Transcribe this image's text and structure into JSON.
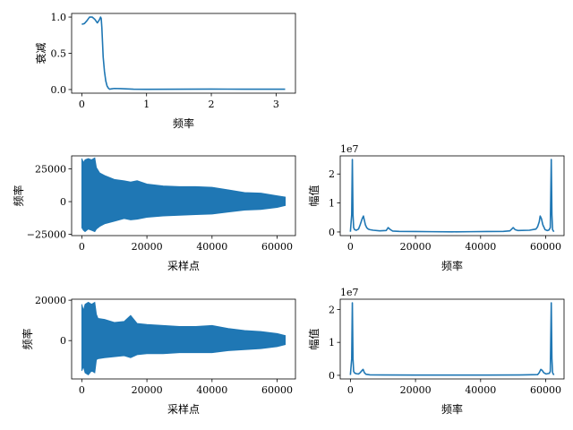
{
  "colors": {
    "line": "#1f77b4",
    "axes": "#000000",
    "background": "#ffffff"
  },
  "chart_data": [
    {
      "id": "filter-response",
      "type": "line",
      "title": "",
      "xlabel": "频率",
      "ylabel": "衰减",
      "xlim": [
        -0.157,
        3.299
      ],
      "ylim": [
        -0.05,
        1.05
      ],
      "xticks": [
        0,
        1,
        2,
        3
      ],
      "xtick_labels": [
        "0",
        "1",
        "2",
        "3"
      ],
      "yticks": [
        0.0,
        0.5,
        1.0
      ],
      "ytick_labels": [
        "0.0",
        "0.5",
        "1.0"
      ],
      "grid": false,
      "legend": "none",
      "series": [
        {
          "x": [
            0,
            0.04,
            0.08,
            0.12,
            0.16,
            0.2,
            0.24,
            0.27,
            0.29,
            0.3,
            0.31,
            0.32,
            0.33,
            0.35,
            0.37,
            0.39,
            0.41,
            0.43,
            0.46,
            0.5,
            0.6,
            0.8,
            1.0,
            1.5,
            2.0,
            2.5,
            3.14
          ],
          "y": [
            0.9,
            0.91,
            0.95,
            1.0,
            1.0,
            0.97,
            0.92,
            0.96,
            1.0,
            0.98,
            0.85,
            0.65,
            0.45,
            0.25,
            0.12,
            0.05,
            0.02,
            0.005,
            0.01,
            0.015,
            0.012,
            0.005,
            0.003,
            0.005,
            0.006,
            0.005,
            0.005
          ]
        }
      ]
    },
    {
      "id": "signal-1",
      "type": "line",
      "title": "",
      "xlabel": "采样点",
      "ylabel": "频率",
      "xlim": [
        -3125,
        65625
      ],
      "ylim": [
        -26000,
        35000
      ],
      "xticks": [
        0,
        20000,
        40000,
        60000
      ],
      "xtick_labels": [
        "0",
        "20000",
        "40000",
        "60000"
      ],
      "yticks": [
        -25000,
        0,
        25000
      ],
      "ytick_labels": [
        "−25000",
        "0",
        "25000"
      ],
      "grid": false,
      "legend": "none",
      "envelope": {
        "x": [
          0,
          500,
          1000,
          2000,
          3000,
          4000,
          4500,
          5500,
          7000,
          10000,
          13000,
          15000,
          17000,
          20000,
          25000,
          30000,
          35000,
          40000,
          45000,
          50000,
          55000,
          60000,
          62500
        ],
        "upper": [
          33000,
          30000,
          32000,
          33000,
          32000,
          33500,
          26000,
          22000,
          20000,
          17000,
          16000,
          15000,
          16000,
          13500,
          12000,
          11500,
          11500,
          11000,
          9000,
          7000,
          6500,
          4500,
          3500
        ],
        "lower": [
          -20000,
          -22000,
          -23000,
          -21000,
          -22000,
          -23000,
          -21000,
          -19000,
          -17000,
          -15000,
          -13000,
          -14000,
          -13500,
          -12000,
          -11000,
          -10500,
          -10000,
          -9500,
          -8000,
          -6500,
          -6000,
          -4500,
          -3000
        ]
      }
    },
    {
      "id": "spectrum-1",
      "type": "line",
      "title": "",
      "xlabel": "频率",
      "ylabel": "幅值",
      "offset_text": "1e7",
      "xlim": [
        -3125,
        65625
      ],
      "ylim": [
        -1250000,
        26250000
      ],
      "xticks": [
        0,
        20000,
        40000,
        60000
      ],
      "xtick_labels": [
        "0",
        "20000",
        "40000",
        "60000"
      ],
      "yticks": [
        0,
        10000000,
        20000000
      ],
      "ytick_labels": [
        "0",
        "1",
        "2"
      ],
      "grid": false,
      "legend": "none",
      "series": [
        {
          "x": [
            0,
            400,
            600,
            800,
            1000,
            1300,
            1800,
            2500,
            3000,
            3600,
            4000,
            4300,
            4600,
            5000,
            5500,
            6000,
            7000,
            9000,
            11000,
            11600,
            12300,
            13000,
            15000,
            20000,
            25000,
            31250,
            37000,
            42000,
            47000,
            49000,
            50000,
            50600,
            51500,
            55000,
            57000,
            57500,
            58000,
            58300,
            58700,
            59100,
            59800,
            60500,
            61000,
            61400,
            61700,
            61900,
            62100,
            62500
          ],
          "y": [
            100000,
            6000000,
            25000000,
            6000000,
            1500000,
            800000,
            600000,
            1000000,
            2500000,
            4500000,
            5500000,
            4000000,
            2500000,
            1500000,
            1000000,
            800000,
            600000,
            400000,
            500000,
            1500000,
            800000,
            300000,
            200000,
            150000,
            100000,
            50000,
            100000,
            150000,
            200000,
            400000,
            1500000,
            800000,
            500000,
            600000,
            1000000,
            1800000,
            3500000,
            5500000,
            4500000,
            2500000,
            800000,
            500000,
            700000,
            1500000,
            25000000,
            6000000,
            800000,
            100000
          ]
        }
      ]
    },
    {
      "id": "signal-2",
      "type": "line",
      "title": "",
      "xlabel": "采样点",
      "ylabel": "频率",
      "xlim": [
        -3125,
        65625
      ],
      "ylim": [
        -19000,
        20500
      ],
      "xticks": [
        0,
        20000,
        40000,
        60000
      ],
      "xtick_labels": [
        "0",
        "20000",
        "40000",
        "60000"
      ],
      "yticks": [
        0,
        20000
      ],
      "ytick_labels": [
        "0",
        "20000"
      ],
      "grid": false,
      "legend": "none",
      "envelope": {
        "x": [
          0,
          500,
          1000,
          2000,
          3000,
          4000,
          4500,
          5000,
          7000,
          10000,
          13000,
          15000,
          17000,
          20000,
          25000,
          30000,
          35000,
          40000,
          45000,
          50000,
          55000,
          60000,
          62500
        ],
        "upper": [
          18000,
          15000,
          18000,
          19000,
          18000,
          19000,
          13000,
          11000,
          10500,
          9000,
          9500,
          12500,
          8500,
          8000,
          7500,
          7000,
          7000,
          7500,
          6000,
          5000,
          4500,
          3500,
          2500
        ],
        "lower": [
          -15000,
          -13000,
          -16000,
          -17000,
          -15000,
          -16000,
          -9500,
          -9000,
          -8500,
          -8000,
          -7500,
          -8500,
          -7000,
          -6500,
          -6500,
          -6000,
          -6000,
          -6000,
          -5000,
          -4500,
          -4000,
          -3000,
          -2000
        ]
      }
    },
    {
      "id": "spectrum-2",
      "type": "line",
      "title": "",
      "xlabel": "频率",
      "ylabel": "幅值",
      "offset_text": "1e7",
      "xlim": [
        -3125,
        65625
      ],
      "ylim": [
        -1100000,
        23100000
      ],
      "xticks": [
        0,
        20000,
        40000,
        60000
      ],
      "xtick_labels": [
        "0",
        "20000",
        "40000",
        "60000"
      ],
      "yticks": [
        0,
        10000000,
        20000000
      ],
      "ytick_labels": [
        "0",
        "1",
        "2"
      ],
      "grid": false,
      "legend": "none",
      "series": [
        {
          "x": [
            0,
            400,
            600,
            800,
            1000,
            1300,
            1800,
            2500,
            3000,
            3600,
            3900,
            4300,
            4800,
            6000,
            10000,
            20000,
            31250,
            42000,
            52000,
            57500,
            58000,
            58500,
            58900,
            59400,
            60100,
            60600,
            61100,
            61400,
            61700,
            61900,
            62100,
            62500
          ],
          "y": [
            100000,
            5000000,
            22000000,
            5000000,
            1200000,
            700000,
            500000,
            400000,
            800000,
            1500000,
            1800000,
            800000,
            300000,
            150000,
            100000,
            80000,
            60000,
            80000,
            100000,
            200000,
            800000,
            1800000,
            1500000,
            800000,
            400000,
            500000,
            600000,
            1200000,
            22000000,
            5000000,
            800000,
            100000
          ]
        }
      ]
    }
  ]
}
